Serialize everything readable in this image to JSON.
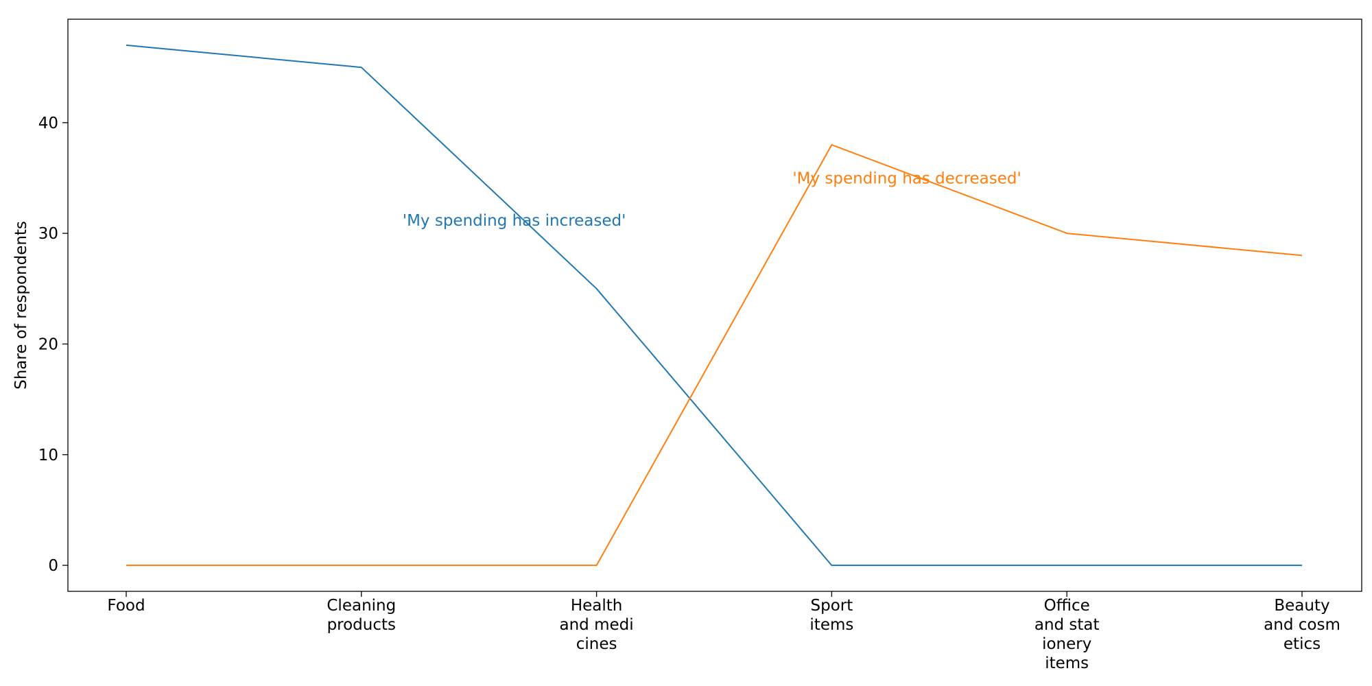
{
  "chart_data": {
    "type": "line",
    "title": "",
    "xlabel": "",
    "ylabel": "Share of respondents",
    "categories": [
      [
        "Food"
      ],
      [
        "Cleaning",
        "products"
      ],
      [
        "Health",
        "and medi",
        "cines"
      ],
      [
        "Sport",
        "items"
      ],
      [
        "Office",
        "and stat",
        "ionery",
        "items"
      ],
      [
        "Beauty",
        "and cosm",
        "etics"
      ]
    ],
    "yticks": [
      0,
      10,
      20,
      30,
      40
    ],
    "ylim": [
      -2.35,
      49.35
    ],
    "grid": false,
    "legend": "none",
    "series": [
      {
        "values": [
          47,
          45,
          25,
          0,
          0,
          0
        ],
        "color": "#1f77b4"
      },
      {
        "values": [
          0,
          0,
          0,
          38,
          30,
          28
        ],
        "color": "#ff7f0e"
      }
    ],
    "annotations": [
      {
        "text": "'My spending has increased'",
        "x": 1.65,
        "y": 31.2,
        "color": "#1f77b4"
      },
      {
        "text": "'My spending has decreased'",
        "x": 3.32,
        "y": 35.0,
        "color": "#ff7f0e"
      }
    ]
  }
}
